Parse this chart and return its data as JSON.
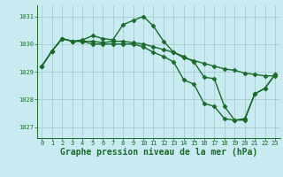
{
  "bg_color": "#c8eaf0",
  "grid_color": "#a0c8c8",
  "line_color": "#1a6b2a",
  "marker": "D",
  "markersize": 2.5,
  "linewidth": 1.0,
  "title": "Graphe pression niveau de la mer (hPa)",
  "title_fontsize": 7.0,
  "ylim": [
    1026.6,
    1031.4
  ],
  "xlim": [
    -0.5,
    23.5
  ],
  "yticks": [
    1027,
    1028,
    1029,
    1030,
    1031
  ],
  "xticks": [
    0,
    1,
    2,
    3,
    4,
    5,
    6,
    7,
    8,
    9,
    10,
    11,
    12,
    13,
    14,
    15,
    16,
    17,
    18,
    19,
    20,
    21,
    22,
    23
  ],
  "line1_x": [
    0,
    1,
    2,
    3,
    4,
    5,
    6,
    7,
    8,
    9,
    10,
    11,
    12,
    13,
    14,
    15,
    16,
    17,
    18,
    19,
    20,
    21,
    22,
    23
  ],
  "line1_y": [
    1029.2,
    1029.75,
    1030.2,
    1030.1,
    1030.15,
    1030.3,
    1030.2,
    1030.15,
    1030.7,
    1030.85,
    1031.0,
    1030.65,
    1030.1,
    1029.7,
    1029.55,
    1029.35,
    1028.8,
    1028.75,
    1027.75,
    1027.25,
    1027.3,
    1028.2,
    1028.4,
    1028.9
  ],
  "line2_x": [
    0,
    1,
    2,
    3,
    4,
    5,
    6,
    7,
    8,
    9,
    10,
    11,
    12,
    13,
    14,
    15,
    16,
    17,
    18,
    19,
    20,
    21,
    22,
    23
  ],
  "line2_y": [
    1029.2,
    1029.75,
    1030.2,
    1030.1,
    1030.1,
    1030.1,
    1030.05,
    1030.1,
    1030.1,
    1030.05,
    1030.0,
    1029.9,
    1029.8,
    1029.7,
    1029.5,
    1029.4,
    1029.3,
    1029.2,
    1029.1,
    1029.05,
    1028.95,
    1028.9,
    1028.85,
    1028.85
  ],
  "line3_x": [
    0,
    1,
    2,
    3,
    4,
    5,
    6,
    7,
    8,
    9,
    10,
    11,
    12,
    13,
    14,
    15,
    16,
    17,
    18,
    19,
    20,
    21,
    22,
    23
  ],
  "line3_y": [
    1029.2,
    1029.75,
    1030.2,
    1030.1,
    1030.1,
    1030.0,
    1030.0,
    1030.0,
    1030.0,
    1030.0,
    1029.9,
    1029.7,
    1029.55,
    1029.35,
    1028.7,
    1028.55,
    1027.85,
    1027.75,
    1027.3,
    1027.25,
    1027.25,
    1028.2,
    1028.4,
    1028.9
  ]
}
